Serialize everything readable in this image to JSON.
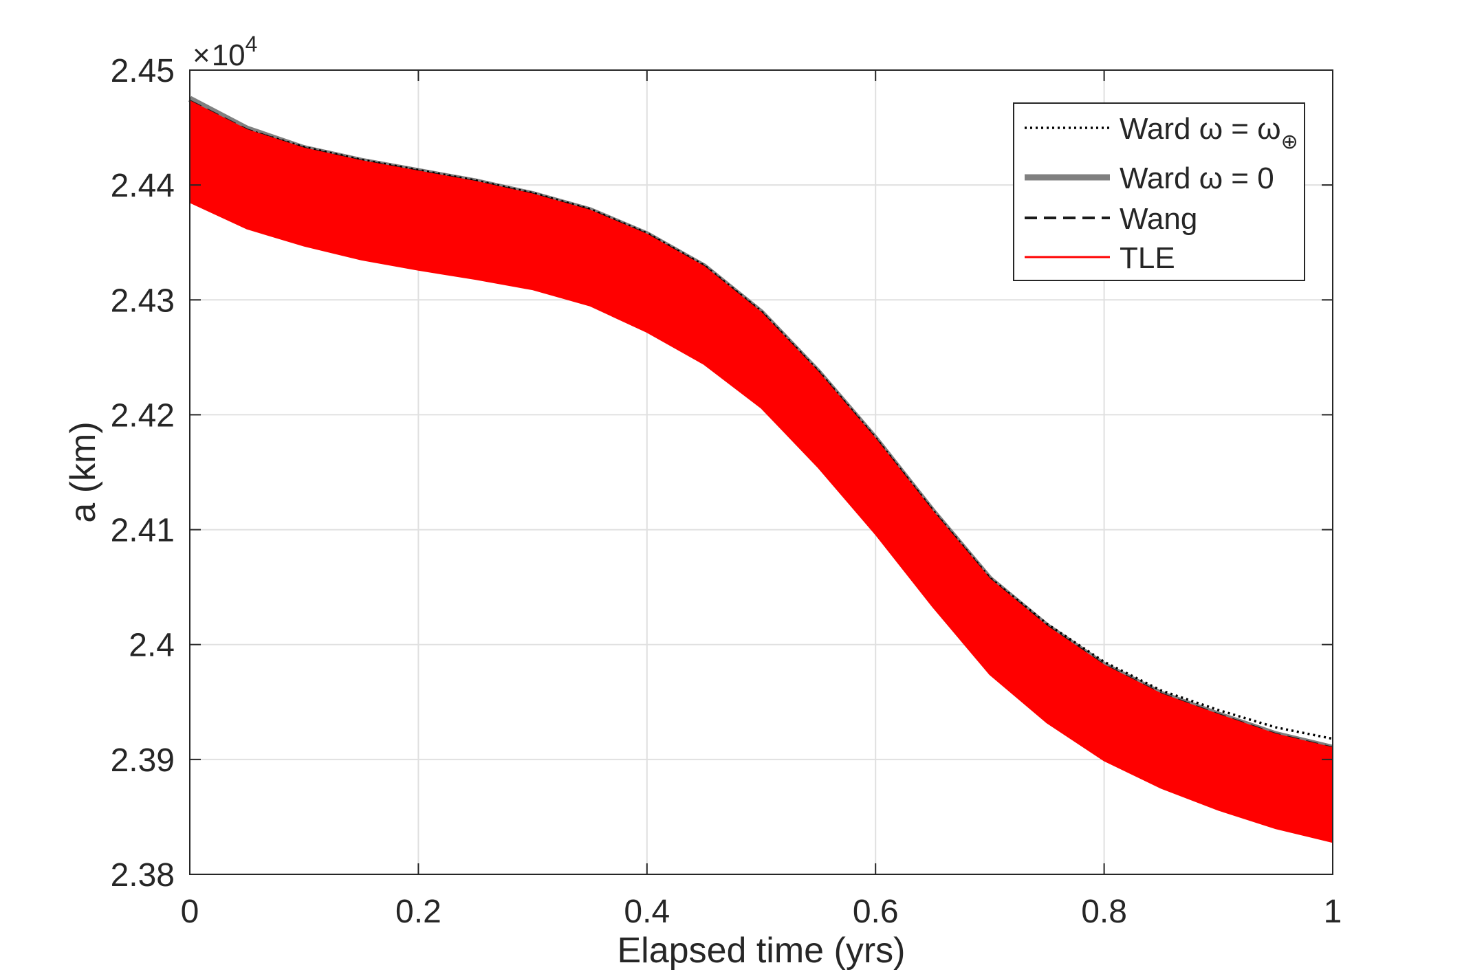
{
  "chart_data": {
    "type": "line",
    "title": "",
    "xlabel": "Elapsed time (yrs)",
    "ylabel": "a (km)",
    "xlim": [
      0,
      1
    ],
    "ylim": [
      23800,
      24500
    ],
    "xticks": [
      0,
      0.2,
      0.4,
      0.6,
      0.8,
      1
    ],
    "xtick_labels": [
      "0",
      "0.2",
      "0.4",
      "0.6",
      "0.8",
      "1"
    ],
    "yticks": [
      23800,
      23900,
      24000,
      24100,
      24200,
      24300,
      24400,
      24500
    ],
    "ytick_labels": [
      "2.38",
      "2.39",
      "2.4",
      "2.41",
      "2.42",
      "2.43",
      "2.44",
      "2.45"
    ],
    "y_exponent": {
      "base": "10",
      "power": "4",
      "multiply_sign": "×"
    },
    "grid": true,
    "legend_position": "top-right",
    "series": [
      {
        "name": "Ward ω = ω⊕",
        "legend_main": "Ward ω = ω",
        "legend_sub": "⊕",
        "style": "dotted",
        "color": "#000000",
        "x": [
          0,
          0.05,
          0.1,
          0.15,
          0.2,
          0.25,
          0.3,
          0.35,
          0.4,
          0.45,
          0.5,
          0.55,
          0.6,
          0.65,
          0.7,
          0.75,
          0.8,
          0.85,
          0.9,
          0.95,
          1.0
        ],
        "values": [
          24470,
          24448,
          24433,
          24422,
          24413,
          24404,
          24393,
          24379,
          24358,
          24330,
          24290,
          24238,
          24180,
          24117,
          24058,
          24018,
          23985,
          23960,
          23943,
          23928,
          23918
        ]
      },
      {
        "name": "Ward ω = 0",
        "legend_main": "Ward ω = 0",
        "legend_sub": "",
        "style": "solid-thick",
        "color": "#808080",
        "x": [
          0,
          0.05,
          0.1,
          0.15,
          0.2,
          0.25,
          0.3,
          0.35,
          0.4,
          0.45,
          0.5,
          0.55,
          0.6,
          0.65,
          0.7,
          0.75,
          0.8,
          0.85,
          0.9,
          0.95,
          1.0
        ],
        "values": [
          24475,
          24449,
          24432,
          24421,
          24412,
          24403,
          24392,
          24378,
          24357,
          24329,
          24289,
          24237,
          24179,
          24116,
          24057,
          24016,
          23982,
          23957,
          23939,
          23922,
          23910
        ]
      },
      {
        "name": "Wang",
        "legend_main": "Wang",
        "legend_sub": "",
        "style": "dashed",
        "color": "#1a1a1a",
        "x": [
          0,
          0.05,
          0.1,
          0.15,
          0.2,
          0.25,
          0.3,
          0.35,
          0.4,
          0.45,
          0.5,
          0.55,
          0.6,
          0.65,
          0.7,
          0.75,
          0.8,
          0.85,
          0.9,
          0.95,
          1.0
        ],
        "values": [
          24473,
          24448,
          24432,
          24421,
          24412,
          24403,
          24392,
          24378,
          24357,
          24329,
          24289,
          24237,
          24179,
          24116,
          24057,
          24016,
          23982,
          23957,
          23939,
          23922,
          23910
        ]
      },
      {
        "name": "TLE",
        "legend_main": "TLE",
        "legend_sub": "",
        "style": "band",
        "color": "#ff0000",
        "x": [
          0,
          0.05,
          0.1,
          0.15,
          0.2,
          0.25,
          0.3,
          0.35,
          0.4,
          0.45,
          0.5,
          0.55,
          0.6,
          0.65,
          0.7,
          0.75,
          0.8,
          0.85,
          0.9,
          0.95,
          1.0
        ],
        "upper": [
          24473,
          24448,
          24432,
          24421,
          24412,
          24403,
          24392,
          24378,
          24357,
          24329,
          24289,
          24237,
          24179,
          24116,
          24057,
          24016,
          23982,
          23957,
          23939,
          23922,
          23910
        ],
        "lower": [
          24385,
          24362,
          24347,
          24335,
          24326,
          24318,
          24309,
          24295,
          24272,
          24244,
          24206,
          24154,
          24096,
          24033,
          23974,
          23932,
          23899,
          23875,
          23856,
          23840,
          23828
        ]
      }
    ]
  }
}
